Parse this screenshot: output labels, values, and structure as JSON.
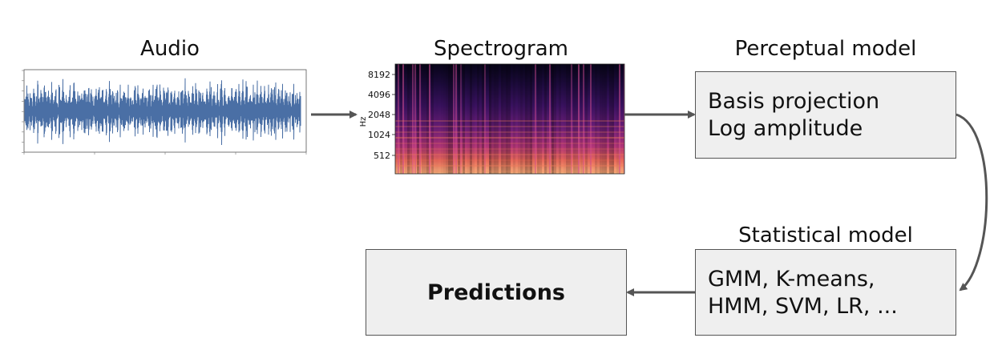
{
  "stages": {
    "audio": {
      "title": "Audio"
    },
    "spectrogram": {
      "title": "Spectrogram",
      "axis_label": "Hz",
      "ticks": [
        "8192",
        "4096",
        "2048",
        "1024",
        "512"
      ]
    },
    "perceptual": {
      "title": "Perceptual model",
      "lines": [
        "Basis projection",
        "Log amplitude"
      ]
    },
    "statistical": {
      "title": "Statistical model",
      "lines": [
        "GMM, K-means,",
        "HMM, SVM, LR, ..."
      ]
    },
    "predictions": {
      "label": "Predictions"
    }
  },
  "colors": {
    "waveform": "#4a6fa5",
    "arrow": "#555555",
    "box_fill": "#efefef",
    "box_border": "#555555"
  }
}
